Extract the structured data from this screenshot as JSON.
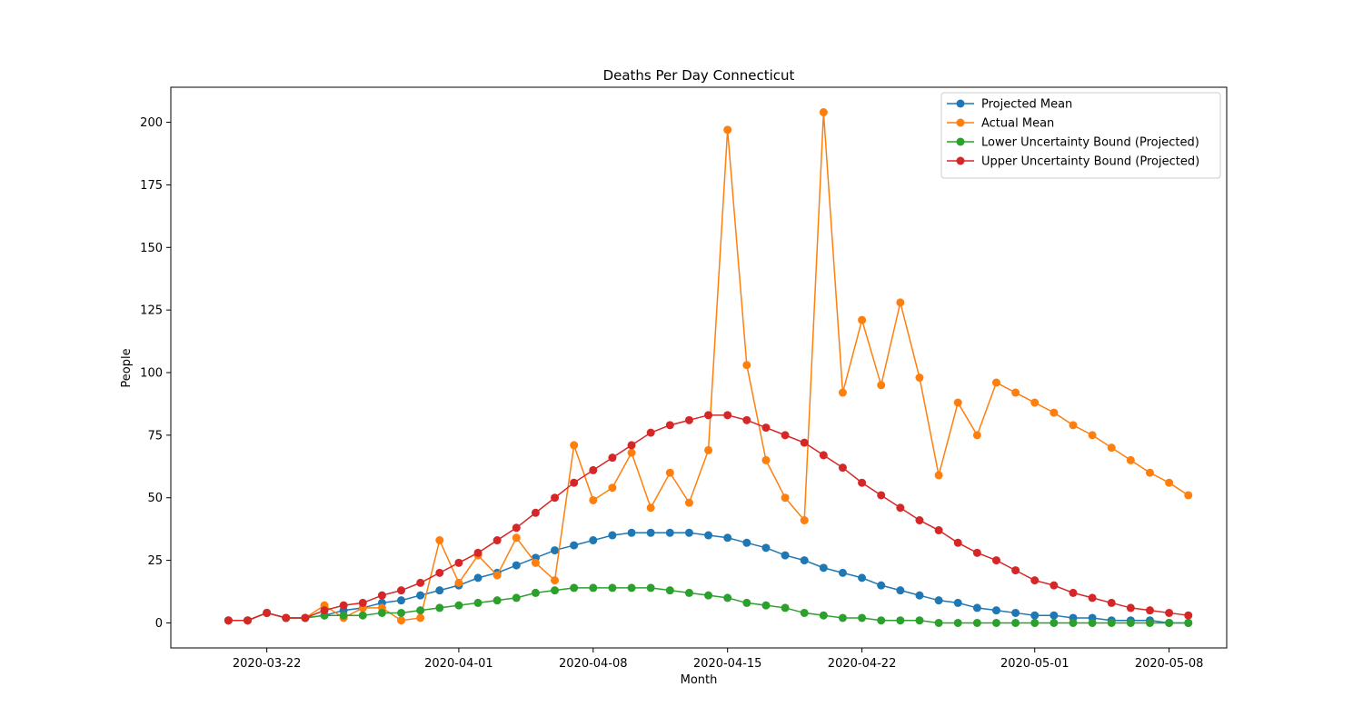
{
  "chart_data": {
    "type": "line",
    "title": "Deaths Per Day Connecticut",
    "xlabel": "Month",
    "ylabel": "People",
    "x_start_date": "2020-03-20",
    "x_ticks": [
      "2020-03-22",
      "2020-04-01",
      "2020-04-08",
      "2020-04-15",
      "2020-04-22",
      "2020-05-01",
      "2020-05-08"
    ],
    "y_ticks": [
      0,
      25,
      50,
      75,
      100,
      125,
      150,
      175,
      200
    ],
    "xlim": [
      "2020-03-17",
      "2020-05-11"
    ],
    "ylim": [
      -10,
      214
    ],
    "legend_position": "top-right",
    "grid": false,
    "series": [
      {
        "name": "Projected Mean",
        "color": "#1f77b4",
        "values": [
          1,
          1,
          4,
          2,
          2,
          3,
          5,
          6,
          8,
          9,
          11,
          13,
          15,
          18,
          20,
          23,
          26,
          29,
          31,
          33,
          35,
          36,
          36,
          36,
          36,
          35,
          34,
          32,
          30,
          27,
          25,
          22,
          20,
          18,
          15,
          13,
          11,
          9,
          8,
          6,
          5,
          4,
          3,
          3,
          2,
          2,
          1,
          1,
          1,
          0,
          0
        ]
      },
      {
        "name": "Actual Mean",
        "color": "#ff7f0e",
        "values": [
          1,
          1,
          4,
          2,
          2,
          7,
          2,
          6,
          6,
          1,
          2,
          33,
          16,
          27,
          19,
          34,
          24,
          17,
          71,
          49,
          54,
          68,
          46,
          60,
          48,
          69,
          197,
          103,
          65,
          50,
          41,
          204,
          92,
          121,
          95,
          128,
          98,
          59,
          88,
          75,
          96,
          92,
          88,
          84,
          79,
          75,
          70,
          65,
          60,
          56,
          51
        ]
      },
      {
        "name": "Lower Uncertainty Bound (Projected)",
        "color": "#2ca02c",
        "values": [
          1,
          1,
          4,
          2,
          2,
          3,
          3,
          3,
          4,
          4,
          5,
          6,
          7,
          8,
          9,
          10,
          12,
          13,
          14,
          14,
          14,
          14,
          14,
          13,
          12,
          11,
          10,
          8,
          7,
          6,
          4,
          3,
          2,
          2,
          1,
          1,
          1,
          0,
          0,
          0,
          0,
          0,
          0,
          0,
          0,
          0,
          0,
          0,
          0,
          0,
          0
        ]
      },
      {
        "name": "Upper Uncertainty Bound (Projected)",
        "color": "#d62728",
        "values": [
          1,
          1,
          4,
          2,
          2,
          5,
          7,
          8,
          11,
          13,
          16,
          20,
          24,
          28,
          33,
          38,
          44,
          50,
          56,
          61,
          66,
          71,
          76,
          79,
          81,
          83,
          83,
          81,
          78,
          75,
          72,
          67,
          62,
          56,
          51,
          46,
          41,
          37,
          32,
          28,
          25,
          21,
          17,
          15,
          12,
          10,
          8,
          6,
          5,
          4,
          3
        ]
      }
    ]
  }
}
